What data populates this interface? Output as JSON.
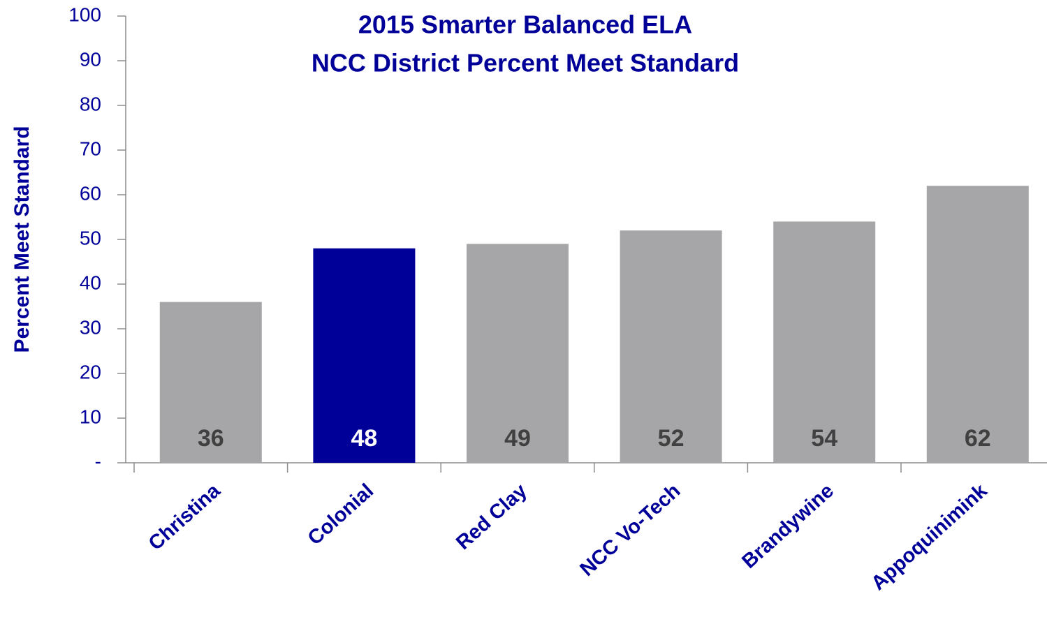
{
  "chart_data": {
    "type": "bar",
    "title": [
      "2015 Smarter Balanced ELA",
      "NCC District Percent Meet Standard"
    ],
    "y_label": "Percent Meet Standard",
    "categories": [
      "Christina",
      "Colonial",
      "Red Clay",
      "NCC Vo-Tech",
      "Brandywine",
      "Appoquinimink"
    ],
    "values": [
      36,
      48,
      49,
      52,
      54,
      62
    ],
    "colors": [
      "#a6a6a8",
      "#000099",
      "#a6a6a8",
      "#a6a6a8",
      "#a6a6a8",
      "#a6a6a8"
    ],
    "label_colors": [
      "#404040",
      "#ffffff",
      "#404040",
      "#404040",
      "#404040",
      "#404040"
    ],
    "ylim": [
      0,
      100
    ],
    "yticks": [
      {
        "value": 0,
        "label": "-"
      },
      10,
      20,
      30,
      40,
      50,
      60,
      70,
      80,
      90,
      100
    ],
    "grid": false
  }
}
